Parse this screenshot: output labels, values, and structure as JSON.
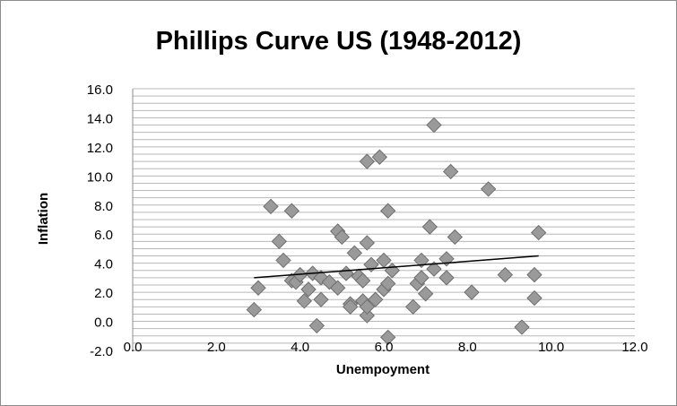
{
  "chart_data": {
    "type": "scatter",
    "title": "Phillips Curve US (1948-2012)",
    "xlabel": "Unempoyment",
    "ylabel": "Inflation",
    "xlim": [
      0,
      12
    ],
    "ylim": [
      -2,
      16
    ],
    "x_ticks": [
      "0.0",
      "2.0",
      "4.0",
      "6.0",
      "8.0",
      "10.0",
      "12.0"
    ],
    "y_ticks": [
      "16.0",
      "14.0",
      "12.0",
      "10.0",
      "8.0",
      "6.0",
      "4.0",
      "2.0",
      "0.0",
      "-2.0"
    ],
    "grid": true,
    "legend": "none",
    "marker": "diamond",
    "marker_color": "#9a9a9a",
    "trendline": {
      "x": [
        2.9,
        9.7
      ],
      "y": [
        3.0,
        4.5
      ],
      "color": "#000000"
    },
    "points": [
      {
        "x": 2.9,
        "y": 0.8
      },
      {
        "x": 3.0,
        "y": 2.3
      },
      {
        "x": 3.3,
        "y": 7.9
      },
      {
        "x": 3.5,
        "y": 5.5
      },
      {
        "x": 3.6,
        "y": 4.2
      },
      {
        "x": 3.8,
        "y": 2.8
      },
      {
        "x": 3.8,
        "y": 7.6
      },
      {
        "x": 3.9,
        "y": 2.7
      },
      {
        "x": 4.0,
        "y": 3.2
      },
      {
        "x": 4.1,
        "y": 1.4
      },
      {
        "x": 4.2,
        "y": 2.2
      },
      {
        "x": 4.3,
        "y": 3.3
      },
      {
        "x": 4.4,
        "y": -0.3
      },
      {
        "x": 4.5,
        "y": 1.5
      },
      {
        "x": 4.5,
        "y": 3.0
      },
      {
        "x": 4.7,
        "y": 2.7
      },
      {
        "x": 4.9,
        "y": 6.2
      },
      {
        "x": 4.9,
        "y": 2.3
      },
      {
        "x": 5.0,
        "y": 5.8
      },
      {
        "x": 5.1,
        "y": 3.3
      },
      {
        "x": 5.2,
        "y": 1.2
      },
      {
        "x": 5.2,
        "y": 1.0
      },
      {
        "x": 5.3,
        "y": 4.7
      },
      {
        "x": 5.4,
        "y": 3.1
      },
      {
        "x": 5.5,
        "y": 1.4
      },
      {
        "x": 5.5,
        "y": 2.8
      },
      {
        "x": 5.6,
        "y": 0.4
      },
      {
        "x": 5.6,
        "y": 1.0
      },
      {
        "x": 5.6,
        "y": 11.0
      },
      {
        "x": 5.6,
        "y": 5.4
      },
      {
        "x": 5.7,
        "y": 3.9
      },
      {
        "x": 5.8,
        "y": 1.5
      },
      {
        "x": 5.9,
        "y": 11.3
      },
      {
        "x": 6.0,
        "y": 2.2
      },
      {
        "x": 6.0,
        "y": 4.2
      },
      {
        "x": 6.1,
        "y": 2.6
      },
      {
        "x": 6.1,
        "y": 7.6
      },
      {
        "x": 6.2,
        "y": 3.5
      },
      {
        "x": 6.1,
        "y": -1.1
      },
      {
        "x": 6.7,
        "y": 1.0
      },
      {
        "x": 6.8,
        "y": 2.6
      },
      {
        "x": 6.9,
        "y": 3.0
      },
      {
        "x": 6.9,
        "y": 4.2
      },
      {
        "x": 7.0,
        "y": 1.9
      },
      {
        "x": 7.1,
        "y": 6.5
      },
      {
        "x": 7.2,
        "y": 3.6
      },
      {
        "x": 7.2,
        "y": 13.5
      },
      {
        "x": 7.5,
        "y": 4.3
      },
      {
        "x": 7.5,
        "y": 3.0
      },
      {
        "x": 7.6,
        "y": 10.3
      },
      {
        "x": 7.7,
        "y": 5.8
      },
      {
        "x": 8.1,
        "y": 2.0
      },
      {
        "x": 8.5,
        "y": 9.1
      },
      {
        "x": 8.9,
        "y": 3.2
      },
      {
        "x": 9.3,
        "y": -0.4
      },
      {
        "x": 9.6,
        "y": 3.2
      },
      {
        "x": 9.6,
        "y": 1.6
      },
      {
        "x": 9.7,
        "y": 6.1
      }
    ]
  }
}
